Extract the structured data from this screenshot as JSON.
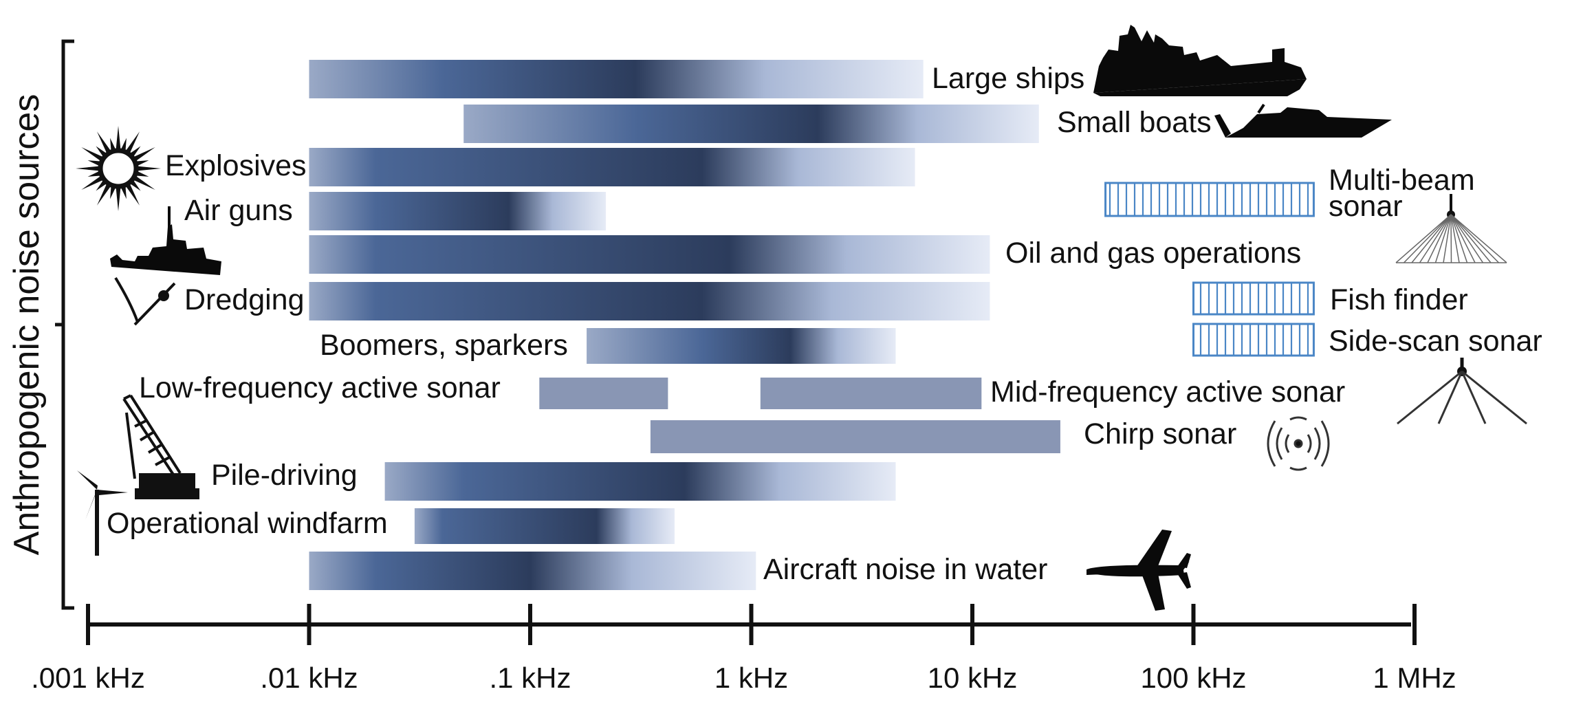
{
  "chart_data": {
    "type": "range-bar",
    "ylabel": "Anthropogenic noise sources",
    "xscale": "log",
    "xunits": "kHz",
    "xlim_khz": [
      0.001,
      1000
    ],
    "ticks": [
      {
        "value_khz": 0.001,
        "label": ".001 kHz"
      },
      {
        "value_khz": 0.01,
        "label": ".01 kHz"
      },
      {
        "value_khz": 0.1,
        "label": ".1 kHz"
      },
      {
        "value_khz": 1,
        "label": "1 kHz"
      },
      {
        "value_khz": 10,
        "label": "10 kHz"
      },
      {
        "value_khz": 100,
        "label": "100 kHz"
      },
      {
        "value_khz": 1000,
        "label": "1 MHz"
      }
    ],
    "sources": [
      {
        "label": "Large ships",
        "icon": "cargo-ship-silhouette",
        "style": "gradient",
        "ranges": [
          [
            0.01,
            6
          ]
        ],
        "peak_khz": [
          0.04,
          0.3
        ]
      },
      {
        "label": "Small boats",
        "icon": "speedboat-silhouette",
        "style": "gradient",
        "ranges": [
          [
            0.05,
            20
          ]
        ],
        "peak_khz": [
          0.3,
          2
        ]
      },
      {
        "label": "Explosives",
        "icon": "explosion-burst",
        "style": "gradient",
        "ranges": [
          [
            0.01,
            5.5
          ]
        ],
        "peak_khz": [
          0.02,
          0.6
        ]
      },
      {
        "label": "Air guns",
        "icon": "",
        "style": "gradient",
        "ranges": [
          [
            0.01,
            0.22
          ]
        ],
        "peak_khz": [
          0.02,
          0.08
        ]
      },
      {
        "label": "Oil and gas operations",
        "icon": "drilling-vessel-silhouette",
        "style": "gradient",
        "ranges": [
          [
            0.01,
            12
          ]
        ],
        "peak_khz": [
          0.02,
          0.8
        ]
      },
      {
        "label": "Dredging",
        "icon": "dredger-silhouette",
        "style": "gradient",
        "ranges": [
          [
            0.01,
            12
          ]
        ],
        "peak_khz": [
          0.02,
          0.6
        ]
      },
      {
        "label": "Boomers, sparkers",
        "icon": "",
        "style": "gradient",
        "ranges": [
          [
            0.18,
            4.5
          ]
        ],
        "peak_khz": [
          0.6,
          1.5
        ]
      },
      {
        "label": "Low-frequency active sonar",
        "icon": "",
        "style": "solid",
        "ranges": [
          [
            0.11,
            0.42
          ]
        ]
      },
      {
        "label": "Mid-frequency active sonar",
        "icon": "",
        "style": "solid",
        "ranges": [
          [
            1.1,
            11
          ]
        ]
      },
      {
        "label": "Chirp sonar",
        "icon": "chirp-wave-icon",
        "style": "solid",
        "ranges": [
          [
            0.35,
            25
          ]
        ]
      },
      {
        "label": "Pile-driving",
        "icon": "crane-silhouette",
        "style": "gradient",
        "ranges": [
          [
            0.022,
            4.5
          ]
        ],
        "peak_khz": [
          0.05,
          0.5
        ]
      },
      {
        "label": "Operational windfarm",
        "icon": "wind-turbine-silhouette",
        "style": "gradient",
        "ranges": [
          [
            0.03,
            0.45
          ]
        ],
        "peak_khz": [
          0.04,
          0.2
        ]
      },
      {
        "label": "Aircraft noise in water",
        "icon": "airplane-silhouette",
        "style": "gradient",
        "ranges": [
          [
            0.01,
            1.05
          ]
        ],
        "peak_khz": [
          0.02,
          0.1
        ]
      },
      {
        "label": "Multi-beam sonar",
        "icon": "multibeam-fan-icon",
        "style": "hatched",
        "ranges": [
          [
            40,
            350
          ]
        ]
      },
      {
        "label": "Fish finder",
        "icon": "",
        "style": "hatched",
        "ranges": [
          [
            100,
            350
          ]
        ]
      },
      {
        "label": "Side-scan sonar",
        "icon": "sidescan-beams-icon",
        "style": "hatched",
        "ranges": [
          [
            100,
            350
          ]
        ]
      }
    ]
  }
}
